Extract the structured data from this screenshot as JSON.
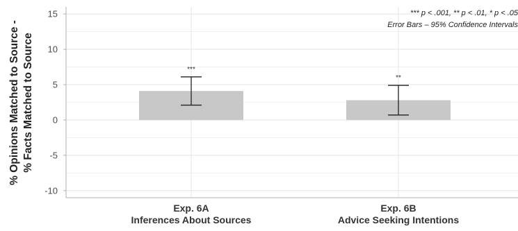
{
  "chart_data": {
    "type": "bar",
    "categories": [
      {
        "line1": "Exp. 6A",
        "line2": "Inferences About Sources"
      },
      {
        "line1": "Exp. 6B",
        "line2": "Advice Seeking Intentions"
      }
    ],
    "values": [
      4.1,
      2.8
    ],
    "ci_lower": [
      2.1,
      0.7
    ],
    "ci_upper": [
      6.1,
      4.9
    ],
    "significance": [
      "***",
      "**"
    ],
    "ylabel_line1": "% Opinions Matched to Source -",
    "ylabel_line2": "% Facts Matched to Source",
    "ylim": [
      -11,
      16
    ],
    "yticks": [
      -10,
      -5,
      0,
      5,
      10,
      15
    ],
    "grid": true,
    "annotation_line1": "*** p < .001, ** p < .01, * p < .05",
    "annotation_line2": "Error Bars – 95% Confidence Intervals",
    "annotation_position": "top-right",
    "colors": {
      "bar": "#c8c8c8",
      "grid": "#e6e6e6",
      "error_bar": "#222222",
      "axis": "#b0b0b0"
    }
  }
}
